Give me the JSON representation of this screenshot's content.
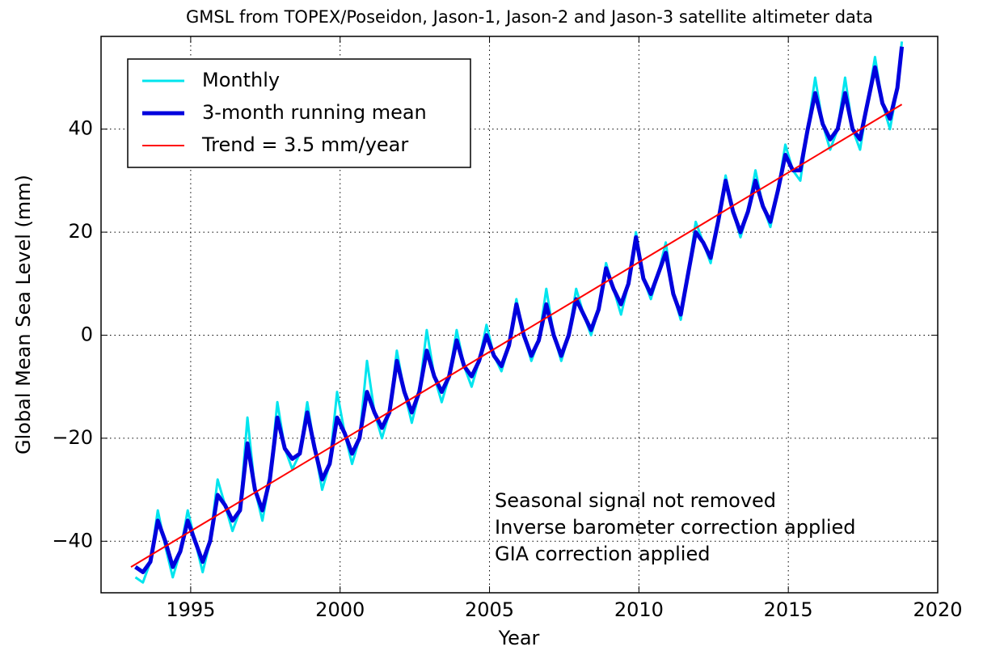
{
  "chart_data": {
    "type": "line",
    "title": "GMSL from TOPEX/Poseidon, Jason-1, Jason-2 and Jason-3 satellite altimeter data",
    "x_label": "Year",
    "y_label": "Global Mean Sea Level (mm)",
    "annotations": [
      "Seasonal signal not removed",
      "Inverse barometer correction applied",
      "GIA correction applied"
    ],
    "xlim": [
      1992,
      2020
    ],
    "ylim": [
      -50,
      58
    ],
    "xticks": [
      1995,
      2000,
      2005,
      2010,
      2015,
      2020
    ],
    "yticks": [
      {
        "value": -40,
        "label": "−40"
      },
      {
        "value": -20,
        "label": "−20"
      },
      0,
      20,
      40
    ],
    "grid": true,
    "legend": "upper left",
    "series": [
      {
        "name": "Monthly",
        "color": "#00e5ee",
        "width": 3,
        "x": [
          1993.15,
          1993.4,
          1993.65,
          1993.9,
          1994.15,
          1994.4,
          1994.65,
          1994.9,
          1995.15,
          1995.4,
          1995.65,
          1995.9,
          1996.15,
          1996.4,
          1996.65,
          1996.9,
          1997.15,
          1997.4,
          1997.65,
          1997.9,
          1998.15,
          1998.4,
          1998.65,
          1998.9,
          1999.15,
          1999.4,
          1999.65,
          1999.9,
          2000.15,
          2000.4,
          2000.65,
          2000.9,
          2001.15,
          2001.4,
          2001.65,
          2001.9,
          2002.15,
          2002.4,
          2002.65,
          2002.9,
          2003.15,
          2003.4,
          2003.65,
          2003.9,
          2004.15,
          2004.4,
          2004.65,
          2004.9,
          2005.15,
          2005.4,
          2005.65,
          2005.9,
          2006.15,
          2006.4,
          2006.65,
          2006.9,
          2007.15,
          2007.4,
          2007.65,
          2007.9,
          2008.15,
          2008.4,
          2008.65,
          2008.9,
          2009.15,
          2009.4,
          2009.65,
          2009.9,
          2010.15,
          2010.4,
          2010.65,
          2010.9,
          2011.15,
          2011.4,
          2011.65,
          2011.9,
          2012.15,
          2012.4,
          2012.65,
          2012.9,
          2013.15,
          2013.4,
          2013.65,
          2013.9,
          2014.15,
          2014.4,
          2014.65,
          2014.9,
          2015.15,
          2015.4,
          2015.65,
          2015.9,
          2016.15,
          2016.4,
          2016.65,
          2016.9,
          2017.15,
          2017.4,
          2017.65,
          2017.9,
          2018.15,
          2018.4,
          2018.65,
          2018.8
        ],
        "values": [
          -47,
          -48,
          -44,
          -34,
          -41,
          -47,
          -42,
          -34,
          -40,
          -46,
          -40,
          -28,
          -33,
          -38,
          -34,
          -16,
          -30,
          -36,
          -28,
          -13,
          -22,
          -26,
          -23,
          -13,
          -22,
          -30,
          -25,
          -11,
          -19,
          -25,
          -20,
          -5,
          -15,
          -20,
          -15,
          -3,
          -11,
          -17,
          -11,
          1,
          -8,
          -13,
          -8,
          1,
          -6,
          -10,
          -5,
          2,
          -4,
          -7,
          -2,
          7,
          0,
          -5,
          -1,
          9,
          0,
          -5,
          0,
          9,
          4,
          0,
          5,
          14,
          9,
          4,
          10,
          20,
          11,
          7,
          12,
          18,
          8,
          3,
          12,
          22,
          18,
          14,
          22,
          31,
          24,
          19,
          24,
          32,
          25,
          21,
          28,
          37,
          32,
          30,
          40,
          50,
          41,
          36,
          40,
          50,
          40,
          36,
          45,
          54,
          45,
          40,
          48,
          57
        ]
      },
      {
        "name": "3-month running mean",
        "color": "#0000dd",
        "width": 5,
        "x": [
          1993.15,
          1993.4,
          1993.65,
          1993.9,
          1994.15,
          1994.4,
          1994.65,
          1994.9,
          1995.15,
          1995.4,
          1995.65,
          1995.9,
          1996.15,
          1996.4,
          1996.65,
          1996.9,
          1997.15,
          1997.4,
          1997.65,
          1997.9,
          1998.15,
          1998.4,
          1998.65,
          1998.9,
          1999.15,
          1999.4,
          1999.65,
          1999.9,
          2000.15,
          2000.4,
          2000.65,
          2000.9,
          2001.15,
          2001.4,
          2001.65,
          2001.9,
          2002.15,
          2002.4,
          2002.65,
          2002.9,
          2003.15,
          2003.4,
          2003.65,
          2003.9,
          2004.15,
          2004.4,
          2004.65,
          2004.9,
          2005.15,
          2005.4,
          2005.65,
          2005.9,
          2006.15,
          2006.4,
          2006.65,
          2006.9,
          2007.15,
          2007.4,
          2007.65,
          2007.9,
          2008.15,
          2008.4,
          2008.65,
          2008.9,
          2009.15,
          2009.4,
          2009.65,
          2009.9,
          2010.15,
          2010.4,
          2010.65,
          2010.9,
          2011.15,
          2011.4,
          2011.65,
          2011.9,
          2012.15,
          2012.4,
          2012.65,
          2012.9,
          2013.15,
          2013.4,
          2013.65,
          2013.9,
          2014.15,
          2014.4,
          2014.65,
          2014.9,
          2015.15,
          2015.4,
          2015.65,
          2015.9,
          2016.15,
          2016.4,
          2016.65,
          2016.9,
          2017.15,
          2017.4,
          2017.65,
          2017.9,
          2018.15,
          2018.4,
          2018.65,
          2018.8
        ],
        "values": [
          -45,
          -46,
          -44,
          -36,
          -40,
          -45,
          -42,
          -36,
          -40,
          -44,
          -40,
          -31,
          -33,
          -36,
          -34,
          -21,
          -30,
          -34,
          -28,
          -16,
          -22,
          -24,
          -23,
          -15,
          -22,
          -28,
          -25,
          -16,
          -19,
          -23,
          -20,
          -11,
          -15,
          -18,
          -15,
          -5,
          -11,
          -15,
          -11,
          -3,
          -8,
          -11,
          -8,
          -1,
          -6,
          -8,
          -5,
          0,
          -4,
          -6,
          -2,
          6,
          0,
          -4,
          -1,
          6,
          0,
          -4,
          0,
          7,
          4,
          1,
          5,
          13,
          9,
          6,
          10,
          19,
          11,
          8,
          12,
          16,
          8,
          4,
          12,
          20,
          18,
          15,
          22,
          30,
          24,
          20,
          24,
          30,
          25,
          22,
          28,
          35,
          32,
          32,
          40,
          47,
          41,
          38,
          40,
          47,
          40,
          38,
          45,
          52,
          45,
          42,
          48,
          56
        ]
      },
      {
        "name": "Trend = 3.5 mm/year",
        "color": "#ff0000",
        "width": 2,
        "x": [
          1993.0,
          2018.8
        ],
        "values": [
          -45,
          44.8
        ]
      }
    ]
  }
}
